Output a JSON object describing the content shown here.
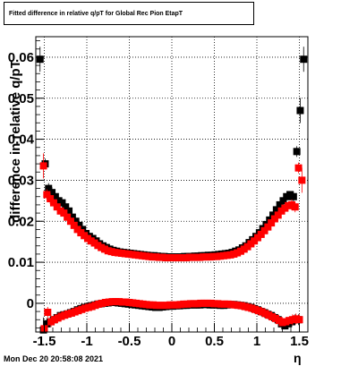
{
  "title": "Fitted difference in relative q/pT for Global Rec Pion EtapT",
  "timestamp": "Mon Dec 20 20:58:08 2021",
  "chart_data": {
    "type": "scatter",
    "title": "Fitted difference in relative q/pT for Global Rec Pion EtapT",
    "xlabel": "η",
    "ylabel": "difference in relative q/pT",
    "xlim": [
      -1.6,
      1.6
    ],
    "ylim": [
      -0.007,
      0.065
    ],
    "grid": true,
    "xticks": [
      -1.5,
      -1,
      -0.5,
      0,
      0.5,
      1,
      1.5
    ],
    "xtick_labels": [
      "-1.5",
      "-1",
      "-0.5",
      "0",
      "0.5",
      "1",
      "1.5"
    ],
    "yticks": [
      0,
      0.01,
      0.02,
      0.03,
      0.04,
      0.05,
      0.06
    ],
    "ytick_labels": [
      "0",
      "0.01",
      "0.02",
      "0.03",
      "0.04",
      "0.05",
      "0.06"
    ],
    "series": [
      {
        "color": "#000000",
        "x": [
          -1.55,
          -1.49,
          -1.45,
          -1.41,
          -1.37,
          -1.33,
          -1.29,
          -1.25,
          -1.21,
          -1.17,
          -1.13,
          -1.09,
          -1.05,
          -1.01,
          -0.97,
          -0.93,
          -0.89,
          -0.85,
          -0.81,
          -0.77,
          -0.73,
          -0.69,
          -0.65,
          -0.61,
          -0.57,
          -0.53,
          -0.49,
          -0.45,
          -0.41,
          -0.37,
          -0.33,
          -0.29,
          -0.25,
          -0.21,
          -0.17,
          -0.13,
          -0.09,
          -0.05,
          -0.01,
          0.03,
          0.07,
          0.11,
          0.15,
          0.19,
          0.23,
          0.27,
          0.31,
          0.35,
          0.39,
          0.43,
          0.47,
          0.51,
          0.55,
          0.59,
          0.63,
          0.67,
          0.71,
          0.75,
          0.79,
          0.83,
          0.87,
          0.91,
          0.95,
          0.99,
          1.03,
          1.07,
          1.11,
          1.15,
          1.19,
          1.23,
          1.27,
          1.31,
          1.35,
          1.39,
          1.43,
          1.47,
          1.51,
          1.55
        ],
        "y": [
          0.0595,
          0.034,
          0.028,
          0.027,
          0.026,
          0.025,
          0.0245,
          0.0235,
          0.0225,
          0.021,
          0.02,
          0.019,
          0.018,
          0.017,
          0.0163,
          0.0158,
          0.0152,
          0.0145,
          0.014,
          0.0136,
          0.0132,
          0.0129,
          0.0127,
          0.0125,
          0.0124,
          0.0123,
          0.0122,
          0.0121,
          0.012,
          0.0119,
          0.0118,
          0.0117,
          0.0116,
          0.0116,
          0.0115,
          0.0114,
          0.0114,
          0.0113,
          0.0113,
          0.0113,
          0.0113,
          0.0113,
          0.0114,
          0.0114,
          0.0114,
          0.0115,
          0.0115,
          0.0116,
          0.0116,
          0.0117,
          0.0117,
          0.0118,
          0.0119,
          0.012,
          0.0121,
          0.0122,
          0.0124,
          0.0127,
          0.013,
          0.0135,
          0.014,
          0.0148,
          0.0155,
          0.0163,
          0.0172,
          0.0182,
          0.0192,
          0.0203,
          0.0215,
          0.0228,
          0.024,
          0.025,
          0.026,
          0.0265,
          0.026,
          0.037,
          0.047,
          0.0595
        ]
      },
      {
        "color": "#ff0000",
        "x": [
          -1.51,
          -1.47,
          -1.43,
          -1.39,
          -1.35,
          -1.31,
          -1.27,
          -1.23,
          -1.19,
          -1.15,
          -1.11,
          -1.07,
          -1.03,
          -0.99,
          -0.95,
          -0.91,
          -0.87,
          -0.83,
          -0.79,
          -0.75,
          -0.71,
          -0.67,
          -0.63,
          -0.59,
          -0.55,
          -0.51,
          -0.47,
          -0.43,
          -0.39,
          -0.35,
          -0.31,
          -0.27,
          -0.23,
          -0.19,
          -0.15,
          -0.11,
          -0.07,
          -0.03,
          0.01,
          0.05,
          0.09,
          0.13,
          0.17,
          0.21,
          0.25,
          0.29,
          0.33,
          0.37,
          0.41,
          0.45,
          0.49,
          0.53,
          0.57,
          0.61,
          0.65,
          0.69,
          0.73,
          0.77,
          0.81,
          0.85,
          0.89,
          0.93,
          0.97,
          1.01,
          1.05,
          1.09,
          1.13,
          1.17,
          1.21,
          1.25,
          1.29,
          1.33,
          1.37,
          1.41,
          1.45,
          1.49,
          1.53
        ],
        "y": [
          0.0335,
          0.0265,
          0.0255,
          0.0245,
          0.0235,
          0.0225,
          0.022,
          0.021,
          0.02,
          0.019,
          0.018,
          0.0172,
          0.0165,
          0.0158,
          0.0152,
          0.0147,
          0.0141,
          0.0136,
          0.0132,
          0.0128,
          0.0126,
          0.0124,
          0.0123,
          0.0122,
          0.0121,
          0.012,
          0.0119,
          0.0118,
          0.0117,
          0.0116,
          0.0115,
          0.0114,
          0.0113,
          0.0113,
          0.0112,
          0.0112,
          0.0111,
          0.0111,
          0.0111,
          0.0111,
          0.0111,
          0.0111,
          0.0111,
          0.0112,
          0.0112,
          0.0112,
          0.0112,
          0.0113,
          0.0113,
          0.0113,
          0.0114,
          0.0114,
          0.0115,
          0.0116,
          0.0117,
          0.0118,
          0.012,
          0.0123,
          0.0127,
          0.0132,
          0.0138,
          0.0145,
          0.0152,
          0.016,
          0.0168,
          0.0177,
          0.0186,
          0.0196,
          0.0206,
          0.0215,
          0.0225,
          0.0232,
          0.0238,
          0.024,
          0.0235,
          0.033,
          0.03
        ]
      },
      {
        "color": "#000000",
        "x": [
          -1.51,
          -1.47,
          -1.43,
          -1.39,
          -1.35,
          -1.31,
          -1.27,
          -1.23,
          -1.19,
          -1.15,
          -1.11,
          -1.07,
          -1.03,
          -0.99,
          -0.95,
          -0.91,
          -0.87,
          -0.83,
          -0.79,
          -0.75,
          -0.71,
          -0.67,
          -0.63,
          -0.59,
          -0.55,
          -0.51,
          -0.47,
          -0.43,
          -0.39,
          -0.35,
          -0.31,
          -0.27,
          -0.23,
          -0.19,
          -0.15,
          -0.11,
          -0.07,
          -0.03,
          0.01,
          0.05,
          0.09,
          0.13,
          0.17,
          0.21,
          0.25,
          0.29,
          0.33,
          0.37,
          0.41,
          0.45,
          0.49,
          0.53,
          0.57,
          0.61,
          0.65,
          0.69,
          0.73,
          0.77,
          0.81,
          0.85,
          0.89,
          0.93,
          0.97,
          1.01,
          1.05,
          1.09,
          1.13,
          1.17,
          1.21,
          1.25,
          1.29,
          1.33,
          1.37,
          1.41,
          1.45,
          1.49
        ],
        "y": [
          -0.0065,
          -0.005,
          -0.0045,
          -0.004,
          -0.0035,
          -0.003,
          -0.0028,
          -0.0026,
          -0.0023,
          -0.002,
          -0.0016,
          -0.0013,
          -0.001,
          -0.0008,
          -0.0006,
          -0.0004,
          -0.0002,
          -0.0001,
          0.0,
          0.0001,
          0.0002,
          0.0002,
          0.0001,
          0.0,
          -0.0001,
          -0.0002,
          -0.0003,
          -0.0004,
          -0.0005,
          -0.0006,
          -0.0007,
          -0.0008,
          -0.0009,
          -0.001,
          -0.001,
          -0.0009,
          -0.0008,
          -0.0007,
          -0.0007,
          -0.0006,
          -0.0006,
          -0.0005,
          -0.0005,
          -0.0004,
          -0.0004,
          -0.0004,
          -0.0004,
          -0.0003,
          -0.0003,
          -0.0004,
          -0.0004,
          -0.0004,
          -0.0005,
          -0.0005,
          -0.0004,
          -0.0003,
          -0.0003,
          -0.0004,
          -0.0005,
          -0.0006,
          -0.0008,
          -0.001,
          -0.0013,
          -0.0016,
          -0.002,
          -0.0023,
          -0.0027,
          -0.003,
          -0.0035,
          -0.004,
          -0.005,
          -0.0055,
          -0.005,
          -0.0045,
          -0.004,
          -0.004
        ]
      },
      {
        "color": "#ff0000",
        "x": [
          -1.5,
          -1.46,
          -1.42,
          -1.38,
          -1.34,
          -1.3,
          -1.26,
          -1.22,
          -1.18,
          -1.14,
          -1.1,
          -1.06,
          -1.02,
          -0.98,
          -0.94,
          -0.9,
          -0.86,
          -0.82,
          -0.78,
          -0.74,
          -0.7,
          -0.66,
          -0.62,
          -0.58,
          -0.54,
          -0.5,
          -0.46,
          -0.42,
          -0.38,
          -0.34,
          -0.3,
          -0.26,
          -0.22,
          -0.18,
          -0.14,
          -0.1,
          -0.06,
          -0.02,
          0.02,
          0.06,
          0.1,
          0.14,
          0.18,
          0.22,
          0.26,
          0.3,
          0.34,
          0.38,
          0.42,
          0.46,
          0.5,
          0.54,
          0.58,
          0.62,
          0.66,
          0.7,
          0.74,
          0.78,
          0.82,
          0.86,
          0.9,
          0.94,
          0.98,
          1.02,
          1.06,
          1.1,
          1.14,
          1.18,
          1.22,
          1.26,
          1.3,
          1.34,
          1.38,
          1.42,
          1.46,
          1.5
        ],
        "y": [
          -0.0062,
          -0.0022,
          -0.0045,
          -0.004,
          -0.0036,
          -0.0032,
          -0.0029,
          -0.0026,
          -0.0024,
          -0.0021,
          -0.0018,
          -0.0015,
          -0.0012,
          -0.001,
          -0.0008,
          -0.0005,
          -0.0002,
          0.0,
          0.0002,
          0.0003,
          0.0004,
          0.0004,
          0.0004,
          0.0003,
          0.0003,
          0.0002,
          0.0001,
          0.0,
          -0.0001,
          -0.0002,
          -0.0003,
          -0.0004,
          -0.0004,
          -0.0005,
          -0.0005,
          -0.0005,
          -0.0005,
          -0.0004,
          -0.0004,
          -0.0004,
          -0.0003,
          -0.0002,
          -0.0002,
          -0.0001,
          -0.0001,
          -0.0001,
          0.0,
          0.0,
          0.0,
          0.0,
          -0.0001,
          -0.0001,
          -0.0002,
          -0.0002,
          -0.0002,
          -0.0003,
          -0.0004,
          -0.0005,
          -0.0006,
          -0.0008,
          -0.001,
          -0.0012,
          -0.0015,
          -0.0018,
          -0.0021,
          -0.0025,
          -0.0029,
          -0.0033,
          -0.0037,
          -0.0042,
          -0.0047,
          -0.0045,
          -0.0042,
          -0.004,
          -0.0038,
          -0.004
        ]
      }
    ]
  }
}
